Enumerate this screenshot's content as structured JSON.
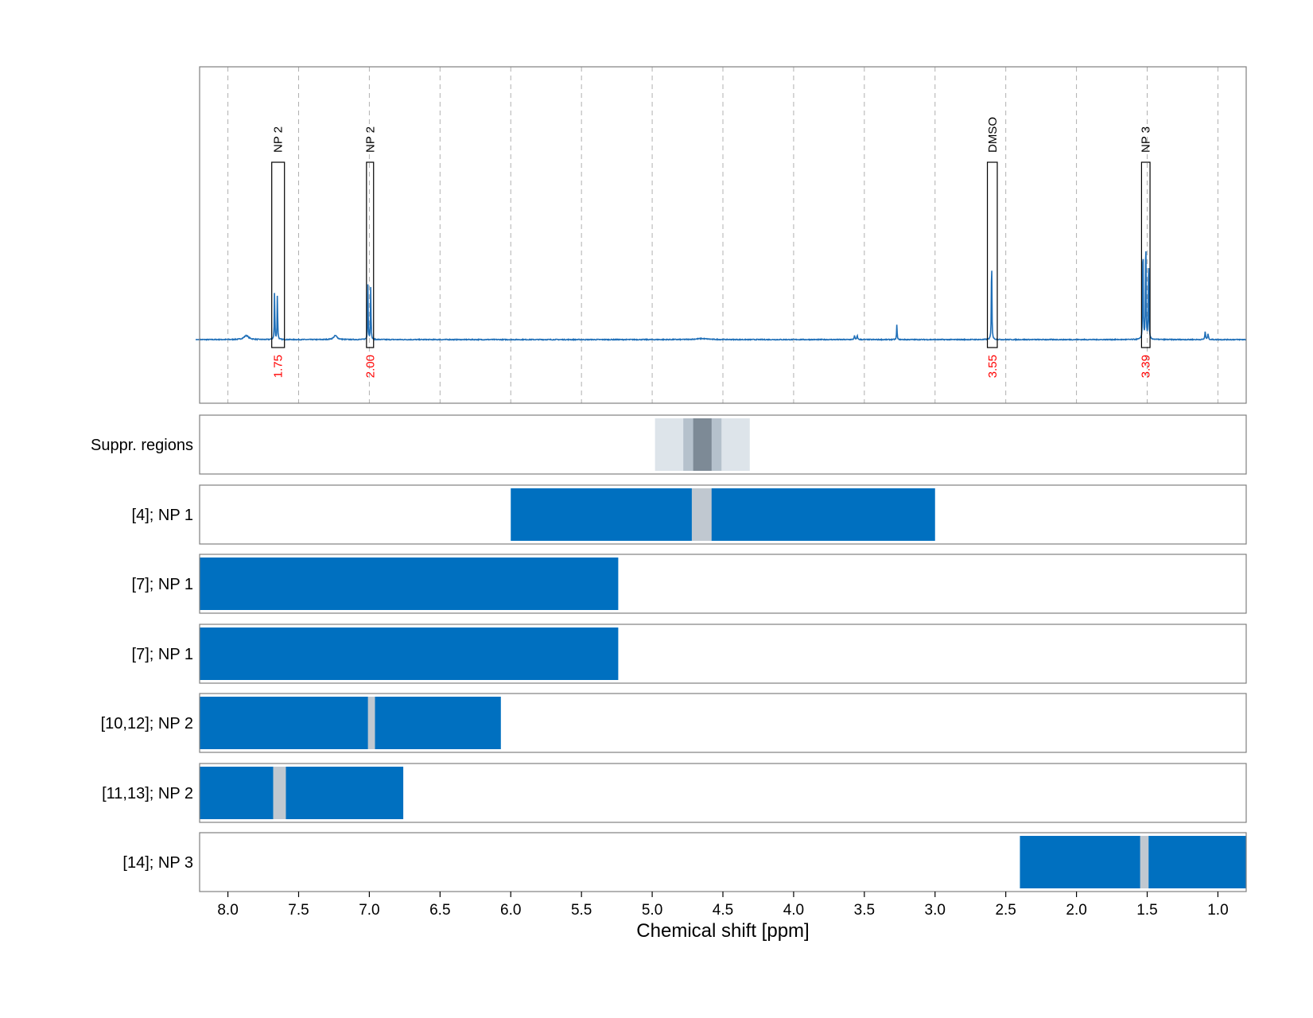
{
  "chart_data": {
    "type": "nmr_spectrum_with_region_tracks",
    "xlabel": "Chemical shift [ppm]",
    "x_reversed": true,
    "xlim": [
      8.2,
      0.8
    ],
    "ticks": [
      8.0,
      7.5,
      7.0,
      6.5,
      6.0,
      5.5,
      5.0,
      4.5,
      4.0,
      3.5,
      3.0,
      2.5,
      2.0,
      1.5,
      1.0
    ],
    "tick_labels": [
      "8.0",
      "7.5",
      "7.0",
      "6.5",
      "6.0",
      "5.5",
      "5.0",
      "4.5",
      "4.0",
      "3.5",
      "3.0",
      "2.5",
      "2.0",
      "1.5",
      "1.0"
    ],
    "grid": "vertical dashed at ticks (spectrum panel)",
    "colors": {
      "spectrum": "#1f6fb8",
      "region_fill": "#0070c0",
      "excluded_gap": "#c0c8d0",
      "annotation_value": "#ff0000",
      "frame": "#808080",
      "suppr_light": "#dde4ea",
      "suppr_mid": "#b5c1cc",
      "suppr_dark": "#7d8a96"
    },
    "spectrum": {
      "baseline": 0.0,
      "ylim": [
        -0.2,
        1.0
      ],
      "peaks": [
        {
          "ppm": 7.87,
          "height": 0.02,
          "width": 0.02
        },
        {
          "ppm": 7.67,
          "height": 0.25,
          "width": 0.002
        },
        {
          "ppm": 7.65,
          "height": 0.24,
          "width": 0.002
        },
        {
          "ppm": 7.24,
          "height": 0.02,
          "width": 0.015
        },
        {
          "ppm": 7.01,
          "height": 0.28,
          "width": 0.002
        },
        {
          "ppm": 6.99,
          "height": 0.27,
          "width": 0.002
        },
        {
          "ppm": 4.65,
          "height": 0.005,
          "width": 0.05
        },
        {
          "ppm": 3.57,
          "height": 0.02,
          "width": 0.003
        },
        {
          "ppm": 3.55,
          "height": 0.02,
          "width": 0.003
        },
        {
          "ppm": 3.27,
          "height": 0.08,
          "width": 0.002
        },
        {
          "ppm": 2.6,
          "height": 0.47,
          "width": 0.002
        },
        {
          "ppm": 1.53,
          "height": 0.58,
          "width": 0.002
        },
        {
          "ppm": 1.51,
          "height": 0.61,
          "width": 0.002
        },
        {
          "ppm": 1.49,
          "height": 0.48,
          "width": 0.002
        },
        {
          "ppm": 1.09,
          "height": 0.04,
          "width": 0.003
        },
        {
          "ppm": 1.07,
          "height": 0.03,
          "width": 0.003
        }
      ],
      "annotations": [
        {
          "label": "NP 2",
          "value": "1.75",
          "ppm_range": [
            7.69,
            7.6
          ]
        },
        {
          "label": "NP 2",
          "value": "2.00",
          "ppm_range": [
            7.02,
            6.97
          ]
        },
        {
          "label": "DMSO",
          "value": "3.55",
          "ppm_range": [
            2.63,
            2.56
          ]
        },
        {
          "label": "NP 3",
          "value": "3.39",
          "ppm_range": [
            1.54,
            1.48
          ]
        }
      ]
    },
    "suppression_track": {
      "label": "Suppr. regions",
      "bands": [
        {
          "ppm_range": [
            4.98,
            4.31
          ],
          "shade": "light"
        },
        {
          "ppm_range": [
            4.78,
            4.51
          ],
          "shade": "mid"
        },
        {
          "ppm_range": [
            4.71,
            4.58
          ],
          "shade": "dark"
        }
      ]
    },
    "region_tracks": [
      {
        "label": "[4]; NP 1",
        "ranges": [
          [
            6.0,
            3.0
          ]
        ],
        "gaps": [
          [
            4.72,
            4.58
          ]
        ]
      },
      {
        "label": "[7]; NP 1",
        "ranges": [
          [
            8.2,
            5.24
          ]
        ],
        "gaps": []
      },
      {
        "label": "[7]; NP 1",
        "ranges": [
          [
            8.2,
            5.24
          ]
        ],
        "gaps": []
      },
      {
        "label": "[10,12]; NP 2",
        "ranges": [
          [
            8.2,
            6.07
          ]
        ],
        "gaps": [
          [
            7.01,
            6.96
          ]
        ]
      },
      {
        "label": "[11,13]; NP 2",
        "ranges": [
          [
            8.2,
            6.76
          ]
        ],
        "gaps": [
          [
            7.68,
            7.59
          ]
        ]
      },
      {
        "label": "[14]; NP 3",
        "ranges": [
          [
            2.4,
            0.8
          ]
        ],
        "gaps": [
          [
            1.55,
            1.49
          ]
        ]
      }
    ]
  }
}
